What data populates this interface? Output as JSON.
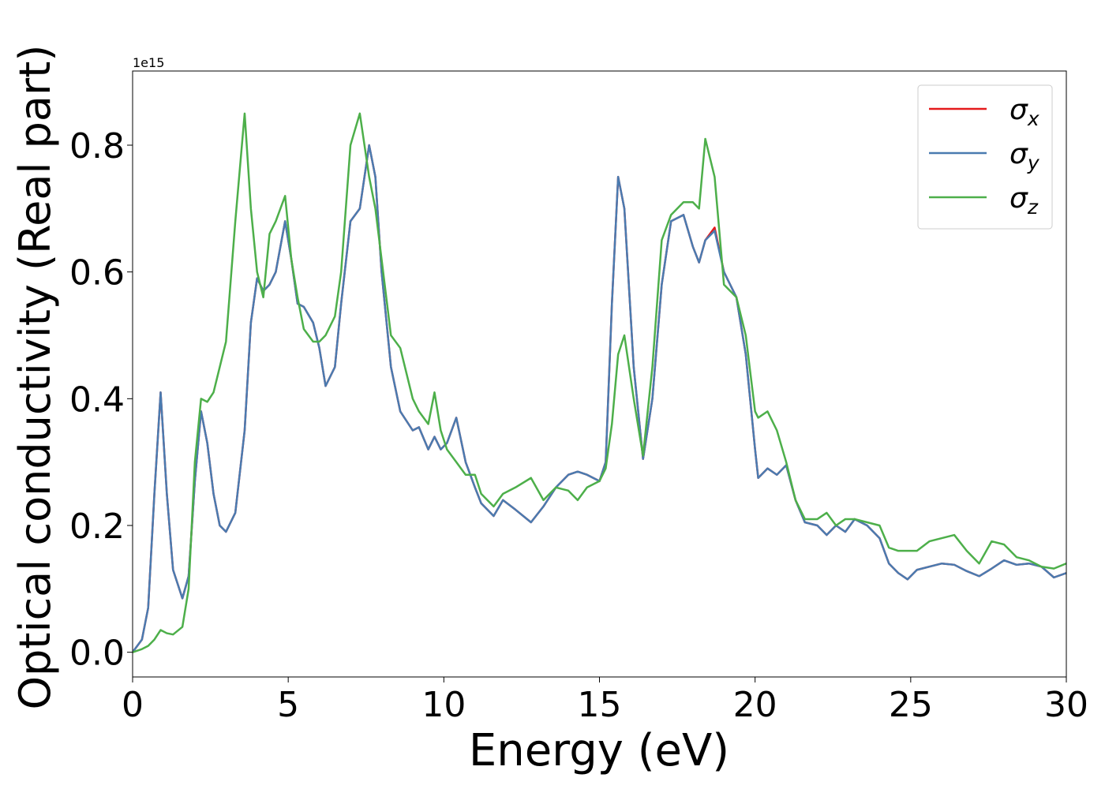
{
  "chart_data": {
    "type": "line",
    "ylabel": "Optical conductivity (Real part)",
    "xlabel": "Energy (eV)",
    "y_offset_label": "1e15",
    "xlim": [
      0,
      30
    ],
    "ylim": [
      -0.039,
      0.917
    ],
    "xticks": [
      0,
      5,
      10,
      15,
      20,
      25,
      30
    ],
    "yticks": [
      {
        "value": 0,
        "label": "0.0"
      },
      0.2,
      0.4,
      0.6,
      0.8
    ],
    "legend": "upper right",
    "x": [
      0,
      0.3,
      0.5,
      0.7,
      0.9,
      1.1,
      1.3,
      1.6,
      1.8,
      2.0,
      2.2,
      2.4,
      2.6,
      2.8,
      3.0,
      3.3,
      3.6,
      3.8,
      4.0,
      4.2,
      4.4,
      4.6,
      4.9,
      5.1,
      5.3,
      5.5,
      5.8,
      6.0,
      6.2,
      6.5,
      6.7,
      7.0,
      7.3,
      7.6,
      7.8,
      8.0,
      8.3,
      8.6,
      9.0,
      9.2,
      9.5,
      9.7,
      9.9,
      10.1,
      10.4,
      10.7,
      11.0,
      11.2,
      11.6,
      11.9,
      12.3,
      12.8,
      13.2,
      13.6,
      14.0,
      14.3,
      14.6,
      15.0,
      15.2,
      15.4,
      15.6,
      15.8,
      16.1,
      16.4,
      16.7,
      17.0,
      17.3,
      17.7,
      18.0,
      18.2,
      18.4,
      18.7,
      19.0,
      19.4,
      19.7,
      20.0,
      20.1,
      20.4,
      20.7,
      21.0,
      21.3,
      21.6,
      22.0,
      22.3,
      22.6,
      22.9,
      23.2,
      23.6,
      24.0,
      24.3,
      24.6,
      24.9,
      25.2,
      25.6,
      26.0,
      26.4,
      26.8,
      27.2,
      27.6,
      28.0,
      28.4,
      28.8,
      29.2,
      29.6,
      30.0
    ],
    "series": [
      {
        "name": "σx",
        "color": "#e41a1c",
        "values": [
          0,
          0.02,
          0.07,
          0.25,
          0.41,
          0.25,
          0.13,
          0.085,
          0.12,
          0.27,
          0.38,
          0.33,
          0.25,
          0.2,
          0.19,
          0.22,
          0.35,
          0.52,
          0.59,
          0.57,
          0.58,
          0.6,
          0.68,
          0.62,
          0.55,
          0.545,
          0.52,
          0.48,
          0.42,
          0.45,
          0.55,
          0.68,
          0.7,
          0.8,
          0.75,
          0.6,
          0.45,
          0.38,
          0.35,
          0.355,
          0.32,
          0.34,
          0.32,
          0.33,
          0.37,
          0.3,
          0.26,
          0.235,
          0.215,
          0.24,
          0.225,
          0.205,
          0.23,
          0.26,
          0.28,
          0.285,
          0.28,
          0.27,
          0.3,
          0.55,
          0.75,
          0.7,
          0.45,
          0.305,
          0.4,
          0.58,
          0.68,
          0.69,
          0.64,
          0.615,
          0.65,
          0.67,
          0.6,
          0.56,
          0.47,
          0.32,
          0.275,
          0.29,
          0.28,
          0.295,
          0.24,
          0.205,
          0.2,
          0.185,
          0.2,
          0.19,
          0.21,
          0.2,
          0.18,
          0.14,
          0.125,
          0.115,
          0.13,
          0.135,
          0.14,
          0.138,
          0.128,
          0.12,
          0.132,
          0.145,
          0.138,
          0.14,
          0.135,
          0.118,
          0.125
        ]
      },
      {
        "name": "σy",
        "color": "#4a7bb0",
        "values": [
          0,
          0.02,
          0.07,
          0.25,
          0.41,
          0.25,
          0.13,
          0.085,
          0.12,
          0.27,
          0.38,
          0.33,
          0.25,
          0.2,
          0.19,
          0.22,
          0.35,
          0.52,
          0.59,
          0.57,
          0.58,
          0.6,
          0.68,
          0.62,
          0.55,
          0.545,
          0.52,
          0.48,
          0.42,
          0.45,
          0.55,
          0.68,
          0.7,
          0.8,
          0.75,
          0.6,
          0.45,
          0.38,
          0.35,
          0.355,
          0.32,
          0.34,
          0.32,
          0.33,
          0.37,
          0.3,
          0.26,
          0.235,
          0.215,
          0.24,
          0.225,
          0.205,
          0.23,
          0.26,
          0.28,
          0.285,
          0.28,
          0.27,
          0.3,
          0.55,
          0.75,
          0.7,
          0.45,
          0.305,
          0.4,
          0.58,
          0.68,
          0.69,
          0.64,
          0.615,
          0.65,
          0.665,
          0.6,
          0.56,
          0.47,
          0.32,
          0.275,
          0.29,
          0.28,
          0.295,
          0.24,
          0.205,
          0.2,
          0.185,
          0.2,
          0.19,
          0.21,
          0.2,
          0.18,
          0.14,
          0.125,
          0.115,
          0.13,
          0.135,
          0.14,
          0.138,
          0.128,
          0.12,
          0.132,
          0.145,
          0.138,
          0.14,
          0.135,
          0.118,
          0.125
        ]
      },
      {
        "name": "σz",
        "color": "#4daf4a",
        "values": [
          0,
          0.005,
          0.01,
          0.02,
          0.035,
          0.03,
          0.028,
          0.04,
          0.1,
          0.3,
          0.4,
          0.395,
          0.41,
          0.45,
          0.49,
          0.68,
          0.85,
          0.7,
          0.6,
          0.56,
          0.66,
          0.68,
          0.72,
          0.62,
          0.56,
          0.51,
          0.49,
          0.49,
          0.5,
          0.53,
          0.6,
          0.8,
          0.85,
          0.75,
          0.7,
          0.62,
          0.5,
          0.48,
          0.4,
          0.38,
          0.36,
          0.41,
          0.35,
          0.32,
          0.3,
          0.28,
          0.28,
          0.25,
          0.23,
          0.25,
          0.26,
          0.275,
          0.24,
          0.26,
          0.255,
          0.24,
          0.26,
          0.27,
          0.29,
          0.36,
          0.47,
          0.5,
          0.4,
          0.31,
          0.45,
          0.65,
          0.69,
          0.71,
          0.71,
          0.7,
          0.81,
          0.75,
          0.58,
          0.56,
          0.5,
          0.38,
          0.37,
          0.38,
          0.35,
          0.3,
          0.24,
          0.21,
          0.21,
          0.22,
          0.2,
          0.21,
          0.21,
          0.205,
          0.2,
          0.165,
          0.16,
          0.16,
          0.16,
          0.175,
          0.18,
          0.185,
          0.16,
          0.14,
          0.175,
          0.17,
          0.15,
          0.145,
          0.135,
          0.132,
          0.14
        ]
      }
    ]
  }
}
